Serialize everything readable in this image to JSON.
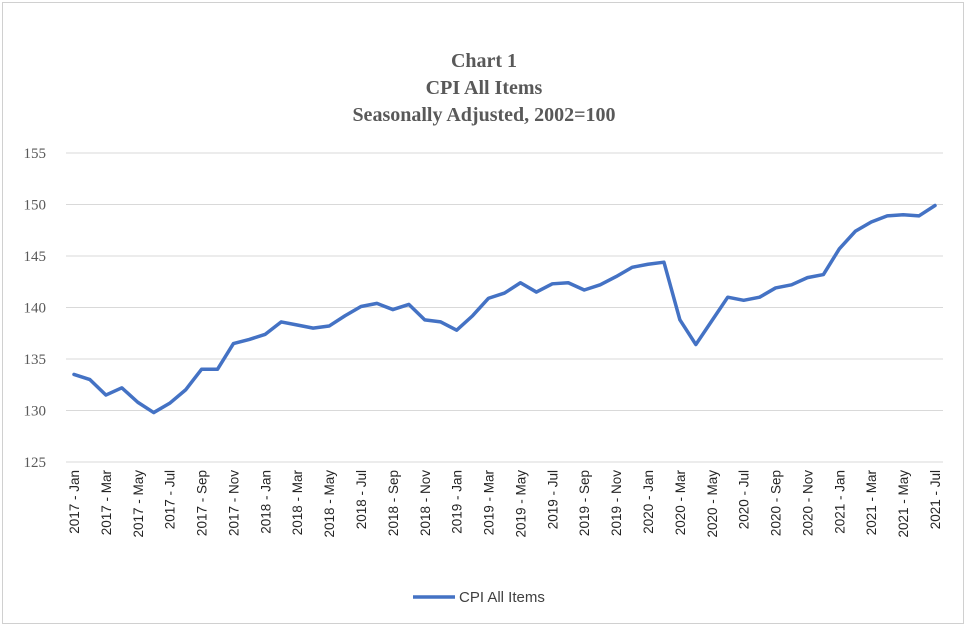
{
  "chart_data": {
    "type": "line",
    "title_lines": [
      "Chart 1",
      "CPI All Items",
      "Seasonally Adjusted, 2002=100"
    ],
    "ylim": [
      125,
      155
    ],
    "yticks": [
      125,
      130,
      135,
      140,
      145,
      150,
      155
    ],
    "grid": "horizontal",
    "legend": "bottom",
    "x": [
      "2017 - Jan",
      "2017 - Feb",
      "2017 - Mar",
      "2017 - Apr",
      "2017 - May",
      "2017 - Jun",
      "2017 - Jul",
      "2017 - Aug",
      "2017 - Sep",
      "2017 - Oct",
      "2017 - Nov",
      "2017 - Dec",
      "2018 - Jan",
      "2018 - Feb",
      "2018 - Mar",
      "2018 - Apr",
      "2018 - May",
      "2018 - Jun",
      "2018 - Jul",
      "2018 - Aug",
      "2018 - Sep",
      "2018 - Oct",
      "2018 - Nov",
      "2018 - Dec",
      "2019 - Jan",
      "2019 - Feb",
      "2019 - Mar",
      "2019 - Apr",
      "2019 - May",
      "2019 - Jun",
      "2019 - Jul",
      "2019 - Aug",
      "2019 - Sep",
      "2019 - Oct",
      "2019 - Nov",
      "2019 - Dec",
      "2020 - Jan",
      "2020 - Feb",
      "2020 - Mar",
      "2020 - Apr",
      "2020 - May",
      "2020 - Jun",
      "2020 - Jul",
      "2020 - Aug",
      "2020 - Sep",
      "2020 - Oct",
      "2020 - Nov",
      "2020 - Dec",
      "2021 - Jan",
      "2021 - Feb",
      "2021 - Mar",
      "2021 - Apr",
      "2021 - May",
      "2021 - Jun",
      "2021 - Jul"
    ],
    "xtick_labels": [
      "2017 - Jan",
      "2017 - Mar",
      "2017 - May",
      "2017 - Jul",
      "2017 - Sep",
      "2017 - Nov",
      "2018 - Jan",
      "2018 - Mar",
      "2018 - May",
      "2018 - Jul",
      "2018 - Sep",
      "2018 - Nov",
      "2019 - Jan",
      "2019 - Mar",
      "2019 - May",
      "2019 - Jul",
      "2019 - Sep",
      "2019 - Nov",
      "2020 - Jan",
      "2020 - Mar",
      "2020 - May",
      "2020 - Jul",
      "2020 - Sep",
      "2020 - Nov",
      "2021 - Jan",
      "2021 - Mar",
      "2021 - May",
      "2021 - Jul"
    ],
    "series": [
      {
        "name": "CPI All Items",
        "color": "#4472c4",
        "values": [
          133.5,
          133.0,
          131.5,
          132.2,
          130.8,
          129.8,
          130.7,
          132.0,
          134.0,
          134.0,
          136.5,
          136.9,
          137.4,
          138.6,
          138.3,
          138.0,
          138.2,
          139.2,
          140.1,
          140.4,
          139.8,
          140.3,
          138.8,
          138.6,
          137.8,
          139.2,
          140.9,
          141.4,
          142.4,
          141.5,
          142.3,
          142.4,
          141.7,
          142.2,
          143.0,
          143.9,
          144.2,
          144.4,
          138.8,
          136.4,
          138.7,
          141.0,
          140.7,
          141.0,
          141.9,
          142.2,
          142.9,
          143.2,
          145.7,
          147.4,
          148.3,
          148.9,
          149.0,
          148.9,
          149.9
        ]
      }
    ]
  }
}
